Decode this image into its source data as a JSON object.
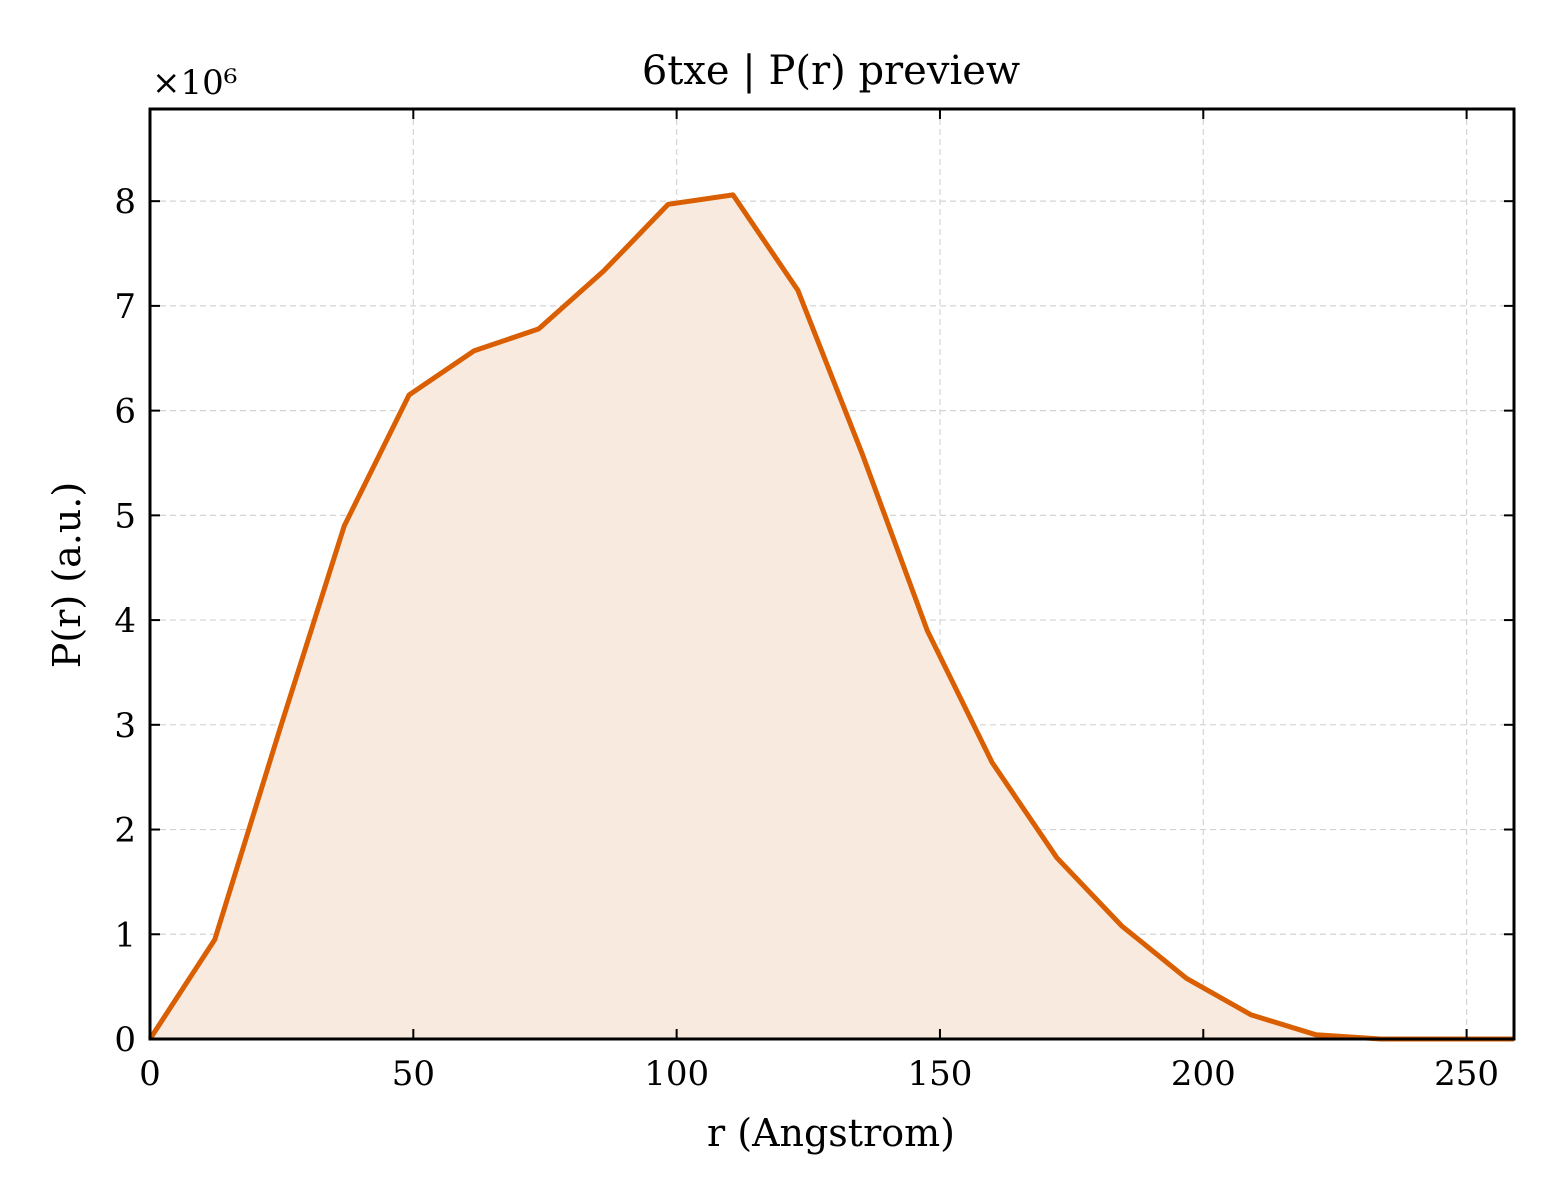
{
  "chart_data": {
    "type": "area",
    "title": "6txe | P(r) preview",
    "xlabel": "r (Angstrom)",
    "ylabel": "P(r) (a.u.)",
    "y_offset_label": "×10⁶",
    "y_multiplier": 1000000,
    "xlim": [
      0,
      259
    ],
    "ylim": [
      0,
      8.88
    ],
    "xticks": [
      0,
      50,
      100,
      150,
      200,
      250
    ],
    "yticks": [
      0,
      1,
      2,
      3,
      4,
      5,
      6,
      7,
      8
    ],
    "grid": true,
    "line_color": "#d95f02",
    "fill_color": "#f8eadf",
    "series": [
      {
        "x": [
          0,
          12.3,
          24.6,
          36.9,
          49.2,
          61.5,
          73.8,
          86.1,
          98.4,
          110.7,
          123.0,
          135.3,
          147.6,
          159.9,
          172.2,
          184.5,
          196.8,
          209.1,
          221.4,
          233.7,
          246.0,
          259.0
        ],
        "values": [
          0.0,
          0.95,
          2.95,
          4.9,
          6.15,
          6.57,
          6.78,
          7.33,
          7.97,
          8.06,
          7.15,
          5.58,
          3.9,
          2.64,
          1.73,
          1.08,
          0.58,
          0.23,
          0.04,
          0.0,
          0.0,
          0.0
        ]
      }
    ]
  }
}
